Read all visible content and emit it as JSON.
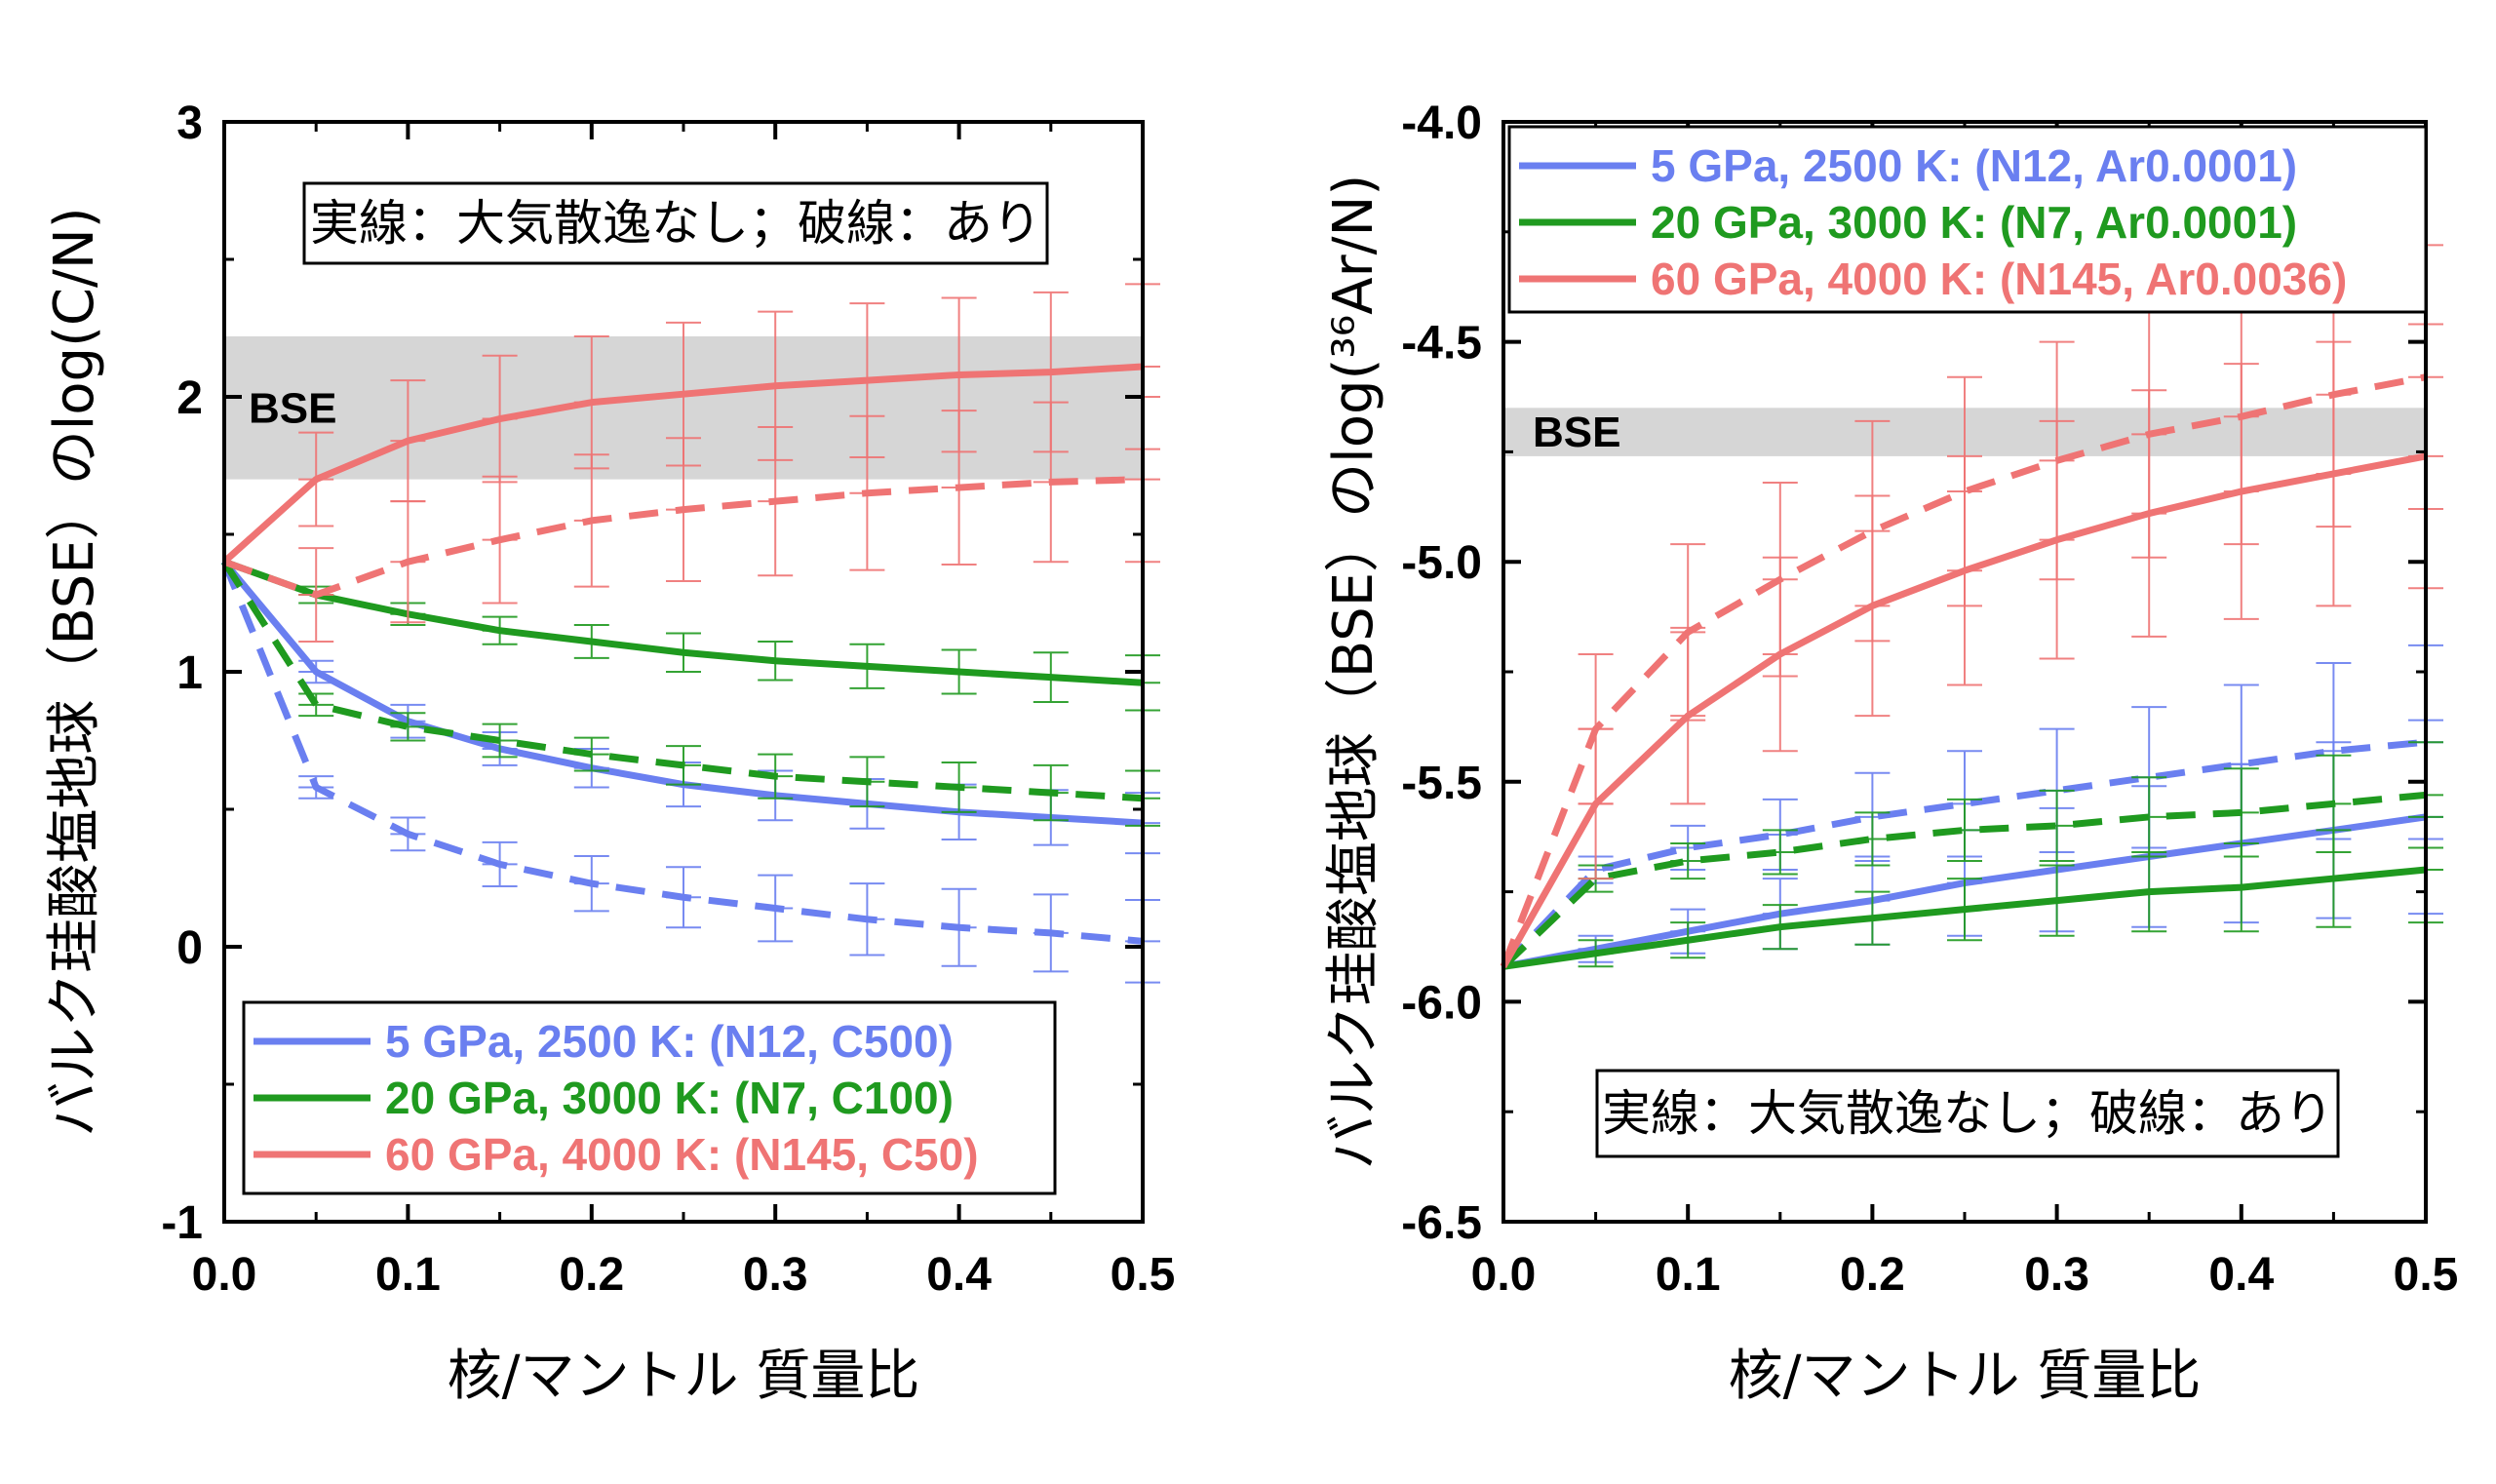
{
  "colors": {
    "blue": "#6a7ff0",
    "green": "#1f9a1f",
    "red": "#ef7474",
    "band": "#d6d6d6"
  },
  "chart_data": [
    {
      "type": "line",
      "title": "",
      "xlabel": "核/マントル 質量比",
      "ylabel": "バルク珪酸塩地球（BSE）のlog(C/N)",
      "xlim": [
        0,
        0.5
      ],
      "ylim": [
        -1,
        3
      ],
      "xticks": [
        "0.0",
        "0.1",
        "0.2",
        "0.3",
        "0.4",
        "0.5"
      ],
      "yticks": [
        "-1",
        "0",
        "1",
        "2",
        "3"
      ],
      "note": "実線：大気散逸なし；破線：あり",
      "band": {
        "label": "BSE",
        "range": [
          1.7,
          2.22
        ]
      },
      "legend_position": "bottom-left",
      "x": [
        0,
        0.05,
        0.1,
        0.15,
        0.2,
        0.25,
        0.3,
        0.35,
        0.4,
        0.45,
        0.5
      ],
      "series": [
        {
          "name": "5 GPa, 2500 K: (N12, C500)",
          "color": "blue",
          "style": "solid",
          "values": [
            1.4,
            1.0,
            0.82,
            0.72,
            0.65,
            0.59,
            0.55,
            0.52,
            0.49,
            0.47,
            0.45
          ],
          "errors": [
            0,
            0.04,
            0.06,
            0.06,
            0.07,
            0.08,
            0.09,
            0.09,
            0.1,
            0.1,
            0.11
          ]
        },
        {
          "name": "",
          "color": "blue",
          "style": "dashed",
          "values": [
            1.4,
            0.58,
            0.41,
            0.3,
            0.23,
            0.18,
            0.14,
            0.1,
            0.07,
            0.05,
            0.02
          ],
          "errors": [
            0,
            0.04,
            0.06,
            0.08,
            0.1,
            0.11,
            0.12,
            0.13,
            0.14,
            0.14,
            0.15
          ]
        },
        {
          "name": "20 GPa, 3000 K: (N7, C100)",
          "color": "green",
          "style": "solid",
          "values": [
            1.4,
            1.28,
            1.21,
            1.15,
            1.11,
            1.07,
            1.04,
            1.02,
            1.0,
            0.98,
            0.96
          ],
          "errors": [
            0,
            0.03,
            0.04,
            0.05,
            0.06,
            0.07,
            0.07,
            0.08,
            0.08,
            0.09,
            0.1
          ]
        },
        {
          "name": "",
          "color": "green",
          "style": "dashed",
          "values": [
            1.4,
            0.88,
            0.8,
            0.75,
            0.7,
            0.66,
            0.62,
            0.6,
            0.58,
            0.56,
            0.54
          ],
          "errors": [
            0,
            0.04,
            0.05,
            0.06,
            0.06,
            0.07,
            0.08,
            0.09,
            0.09,
            0.1,
            0.1
          ]
        },
        {
          "name": "60 GPa, 4000 K: (N145, C50)",
          "color": "red",
          "style": "solid",
          "values": [
            1.4,
            1.7,
            1.84,
            1.92,
            1.98,
            2.01,
            2.04,
            2.06,
            2.08,
            2.09,
            2.11
          ],
          "errors": [
            0,
            0.17,
            0.22,
            0.23,
            0.24,
            0.26,
            0.27,
            0.28,
            0.28,
            0.29,
            0.3
          ]
        },
        {
          "name": "",
          "color": "red",
          "style": "dashed",
          "values": [
            1.4,
            1.28,
            1.4,
            1.48,
            1.55,
            1.59,
            1.62,
            1.65,
            1.67,
            1.69,
            1.7
          ],
          "errors": [
            0,
            0.17,
            0.22,
            0.23,
            0.24,
            0.26,
            0.27,
            0.28,
            0.28,
            0.29,
            0.3
          ]
        }
      ]
    },
    {
      "type": "line",
      "title": "",
      "xlabel": "核/マントル 質量比",
      "ylabel": "バルク珪酸塩地球（BSE）のlog(³⁶Ar/N)",
      "xlim": [
        0,
        0.5
      ],
      "ylim": [
        -6.5,
        -4.0
      ],
      "xticks": [
        "0.0",
        "0.1",
        "0.2",
        "0.3",
        "0.4",
        "0.5"
      ],
      "yticks": [
        "-6.5",
        "-6.0",
        "-5.5",
        "-5.0",
        "-4.5",
        "-4.0"
      ],
      "note": "実線：大気散逸なし；破線：あり",
      "band": {
        "label": "BSE",
        "range": [
          -4.76,
          -4.65
        ]
      },
      "legend_position": "top-left",
      "x": [
        0,
        0.05,
        0.1,
        0.15,
        0.2,
        0.25,
        0.3,
        0.35,
        0.4,
        0.45,
        0.5
      ],
      "series": [
        {
          "name": "5 GPa, 2500 K: (N12, Ar0.0001)",
          "color": "blue",
          "style": "solid",
          "values": [
            -5.92,
            -5.88,
            -5.84,
            -5.8,
            -5.77,
            -5.73,
            -5.7,
            -5.67,
            -5.64,
            -5.61,
            -5.58
          ],
          "errors": [
            0,
            0.03,
            0.05,
            0.08,
            0.1,
            0.12,
            0.14,
            0.16,
            0.18,
            0.2,
            0.22
          ]
        },
        {
          "name": "",
          "color": "blue",
          "style": "dashed",
          "values": [
            -5.92,
            -5.7,
            -5.65,
            -5.62,
            -5.58,
            -5.55,
            -5.52,
            -5.49,
            -5.46,
            -5.43,
            -5.41
          ],
          "errors": [
            0,
            0.03,
            0.05,
            0.08,
            0.1,
            0.12,
            0.14,
            0.16,
            0.18,
            0.2,
            0.22
          ]
        },
        {
          "name": "20 GPa, 3000 K: (N7, Ar0.0001)",
          "color": "green",
          "style": "solid",
          "values": [
            -5.92,
            -5.89,
            -5.86,
            -5.83,
            -5.81,
            -5.79,
            -5.77,
            -5.75,
            -5.74,
            -5.72,
            -5.7
          ],
          "errors": [
            0,
            0.03,
            0.04,
            0.05,
            0.06,
            0.07,
            0.08,
            0.09,
            0.1,
            0.11,
            0.12
          ]
        },
        {
          "name": "",
          "color": "green",
          "style": "dashed",
          "values": [
            -5.92,
            -5.72,
            -5.68,
            -5.66,
            -5.63,
            -5.61,
            -5.6,
            -5.58,
            -5.57,
            -5.55,
            -5.53
          ],
          "errors": [
            0,
            0.03,
            0.04,
            0.05,
            0.06,
            0.07,
            0.08,
            0.09,
            0.1,
            0.11,
            0.12
          ]
        },
        {
          "name": "60 GPa, 4000 K: (N145, Ar0.0036)",
          "color": "red",
          "style": "solid",
          "values": [
            -5.92,
            -5.55,
            -5.35,
            -5.21,
            -5.1,
            -5.02,
            -4.95,
            -4.89,
            -4.84,
            -4.8,
            -4.76
          ],
          "errors": [
            0,
            0.17,
            0.2,
            0.22,
            0.25,
            0.26,
            0.27,
            0.28,
            0.29,
            0.3,
            0.3
          ]
        },
        {
          "name": "",
          "color": "red",
          "style": "dashed",
          "values": [
            -5.92,
            -5.38,
            -5.16,
            -5.04,
            -4.93,
            -4.84,
            -4.77,
            -4.71,
            -4.67,
            -4.62,
            -4.58
          ],
          "errors": [
            0,
            0.17,
            0.2,
            0.22,
            0.25,
            0.26,
            0.27,
            0.28,
            0.29,
            0.3,
            0.3
          ]
        }
      ]
    }
  ]
}
